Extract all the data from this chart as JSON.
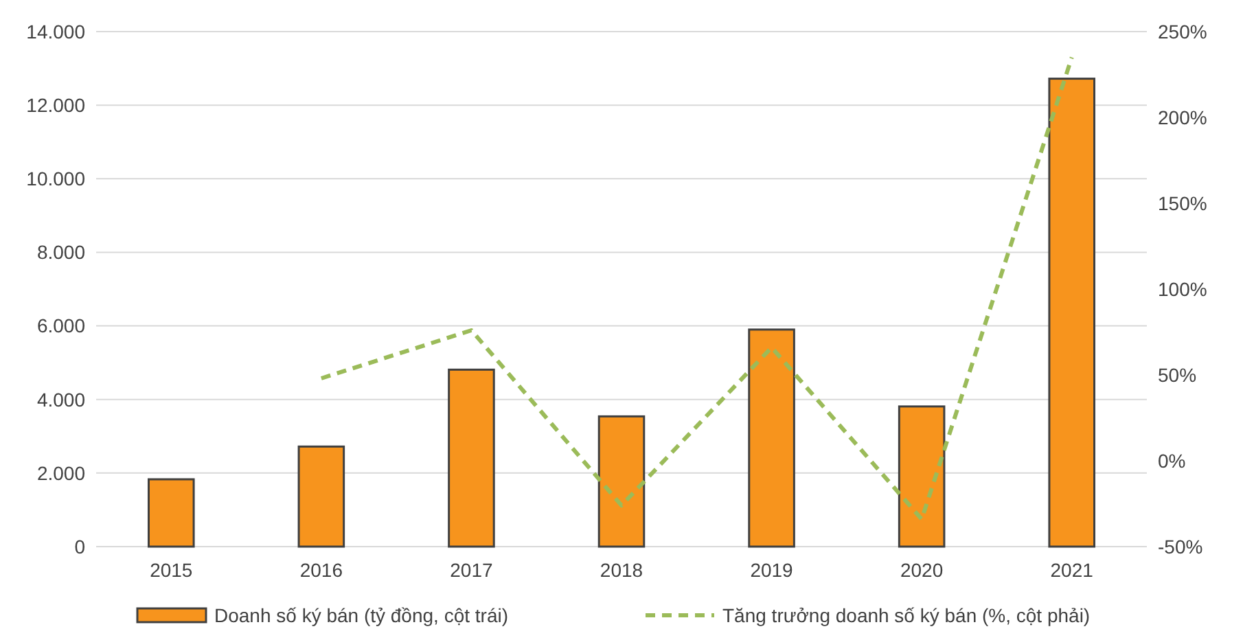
{
  "chart_data": {
    "type": "bar",
    "categories": [
      "2015",
      "2016",
      "2017",
      "2018",
      "2019",
      "2020",
      "2021"
    ],
    "series": [
      {
        "name": "Doanh số ký bán (tỷ đồng, cột trái)",
        "color": "#f7941d",
        "values": [
          1830,
          2720,
          4810,
          3540,
          5900,
          3810,
          12720
        ]
      },
      {
        "name": "Tăng trưởng doanh số ký bán (%, cột phải)",
        "type": "line",
        "axis": "y2",
        "color": "#9bbb59",
        "line_style": "dashed",
        "values": [
          null,
          48,
          76,
          -26,
          66,
          -34,
          235
        ]
      }
    ],
    "ylim": [
      0,
      14000
    ],
    "yticks": [
      0,
      {
        "value": 2000,
        "label": "2.000"
      },
      {
        "value": 4000,
        "label": "4.000"
      },
      {
        "value": 6000,
        "label": "6.000"
      },
      {
        "value": 8000,
        "label": "8.000"
      },
      {
        "value": 10000,
        "label": "10.000"
      },
      {
        "value": 12000,
        "label": "12.000"
      },
      {
        "value": 14000,
        "label": "14.000"
      }
    ],
    "y2lim": [
      -50,
      250
    ],
    "y2ticks": [
      {
        "value": -50,
        "label": "-50%"
      },
      {
        "value": 0,
        "label": "0%"
      },
      {
        "value": 50,
        "label": "50%"
      },
      {
        "value": 100,
        "label": "100%"
      },
      {
        "value": 150,
        "label": "150%"
      },
      {
        "value": 200,
        "label": "200%"
      },
      {
        "value": 250,
        "label": "250%"
      }
    ],
    "grid": "y",
    "legend": "bottom",
    "marker": "none"
  }
}
